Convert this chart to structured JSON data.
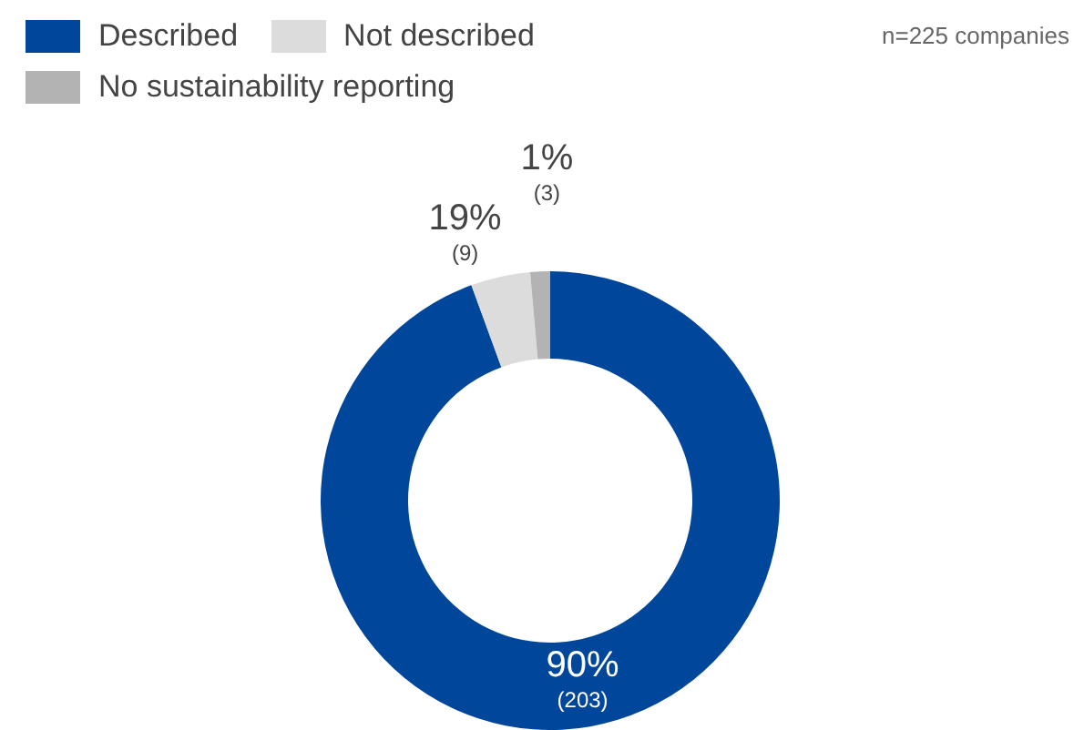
{
  "chart_data": {
    "type": "donut",
    "categories": [
      "Described",
      "Not described",
      "No sustainability reporting"
    ],
    "values": [
      203,
      9,
      3
    ],
    "colors": [
      "#00479b",
      "#dcdcdc",
      "#b3b3b3"
    ],
    "value_labels": [
      "90%\n(203)",
      "19%\n(9)",
      "1%\n(3)"
    ],
    "legend": "top left",
    "annotations": [
      "n=225 companies"
    ]
  }
}
